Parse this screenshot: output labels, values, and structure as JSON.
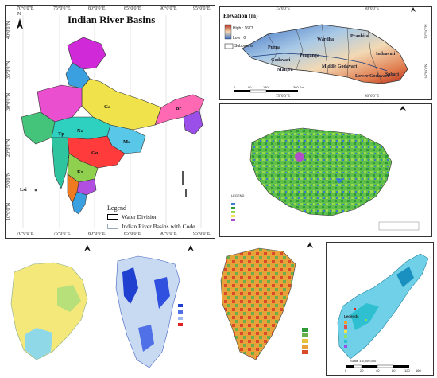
{
  "india_panel": {
    "title": "Indian River Basins",
    "north": "N",
    "top_ticks": [
      "70°0'0\"E",
      "75°0'0\"E",
      "80°0'0\"E",
      "85°0'0\"E",
      "90°0'0\"E",
      "95°0'0\"E"
    ],
    "bottom_ticks": [
      "70°0'0\"E",
      "75°0'0\"E",
      "80°0'0\"E",
      "85°0'0\"E",
      "90°0'0\"E",
      "95°0'0\"E"
    ],
    "left_ticks": [
      "40°0'0\"N",
      "35°0'0\"N",
      "30°0'0\"N",
      "20°0'0\"N",
      "15°0'0\"N",
      "10°0'0\"N"
    ],
    "basin_codes": [
      "Ga",
      "Br",
      "Go",
      "Kr",
      "Ma",
      "Na",
      "Tp",
      "Lsi"
    ],
    "legend_title": "Legend",
    "legend_items": [
      "Water Division",
      "Indian River Basins with Code"
    ],
    "colors": {
      "ganga": "#f0e24a",
      "indus": "#3aa0e0",
      "brahmaputra": "#ff69b4",
      "godavari": "#ff3b3b",
      "krishna": "#8fd14f",
      "west": "#2ec4a0"
    }
  },
  "elevation_panel": {
    "title": "Elevation (m)",
    "high": "High : 1677",
    "low": "Low : 0",
    "subbasins": "Subbasins",
    "top_ticks": [
      "75°0'0\"E",
      "80°0'0\"E"
    ],
    "bottom_ticks": [
      "75°0'0\"E",
      "80°0'0\"E"
    ],
    "left_ticks": [
      "20°0'0\"N",
      "16°0'0\"N"
    ],
    "scale": [
      "0",
      "90",
      "180",
      "360 Km"
    ],
    "subbasin_labels": [
      "Wardha",
      "Penganga",
      "Purna",
      "Godavari",
      "Manjra",
      "Middle Godavari",
      "Pranhita",
      "Indravati",
      "Sabari",
      "Lower Godavari"
    ]
  },
  "green_panel": {
    "caption": "LEGEND"
  },
  "bottom_panels": {
    "legend_title": "Legends",
    "scale_caption": "Scale 1:5,000,000",
    "scale": [
      "0",
      "20",
      "40",
      "80",
      "120",
      "160"
    ]
  }
}
